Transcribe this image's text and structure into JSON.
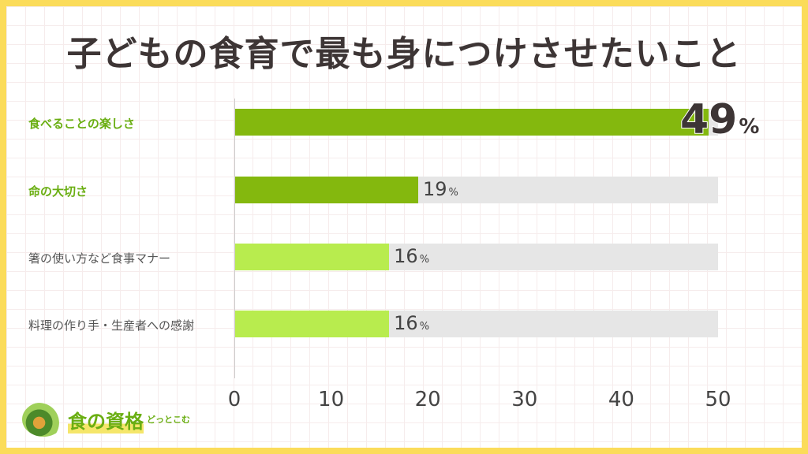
{
  "chart_data": {
    "type": "bar",
    "orientation": "horizontal",
    "title": "子どもの食育で最も身につけさせたいこと",
    "categories": [
      "食べることの楽しさ",
      "命の大切さ",
      "箸の使い方など食事マナー",
      "料理の作り手・生産者への感謝"
    ],
    "values": [
      49,
      19,
      16,
      16
    ],
    "value_unit": "%",
    "xlim": [
      0,
      50
    ],
    "xticks": [
      0,
      10,
      20,
      30,
      40,
      50
    ],
    "bar_colors": [
      "#84b80e",
      "#84b80e",
      "#b8ec4e",
      "#b8ec4e"
    ],
    "track_color": "#e6e6e6",
    "highlight_label_color": "#6aae12",
    "grid": false
  },
  "logo": {
    "main": "食の資格",
    "sub": "どっとこむ"
  }
}
